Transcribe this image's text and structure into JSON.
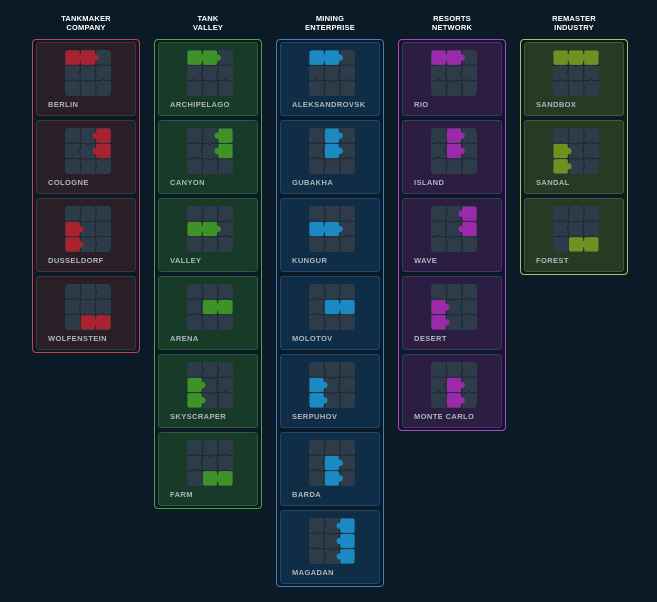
{
  "top_text": "·  ·  ·  ·  ·  ·  ·",
  "groups": [
    {
      "title_line1": "TANKMAKER",
      "title_line2": "COMPANY",
      "color": "#c4414f",
      "card_bg": "#2a1e27",
      "card_border": "#47323c",
      "piece_color": "#a8232f",
      "levels": [
        {
          "name": "BERLIN",
          "piece": 0
        },
        {
          "name": "COLOGNE",
          "piece": 1
        },
        {
          "name": "DUSSELDORF",
          "piece": 2
        },
        {
          "name": "WOLFENSTEIN",
          "piece": 3
        }
      ]
    },
    {
      "title_line1": "TANK",
      "title_line2": "VALLEY",
      "color": "#4fa53a",
      "card_bg": "#173a29",
      "card_border": "#2f5a3a",
      "piece_color": "#3d9327",
      "levels": [
        {
          "name": "ARCHIPELAGO",
          "piece": 0
        },
        {
          "name": "CANYON",
          "piece": 1
        },
        {
          "name": "VALLEY",
          "piece": 4
        },
        {
          "name": "ARENA",
          "piece": 5
        },
        {
          "name": "SKYSCRAPER",
          "piece": 2
        },
        {
          "name": "FARM",
          "piece": 3
        }
      ]
    },
    {
      "title_line1": "MINING",
      "title_line2": "ENTERPRISE",
      "color": "#3d7fc8",
      "card_bg": "#0f2d47",
      "card_border": "#23476a",
      "piece_color": "#1b8ac2",
      "levels": [
        {
          "name": "ALEKSANDROVSK",
          "piece": 0
        },
        {
          "name": "GUBAKHA",
          "piece": 6
        },
        {
          "name": "KUNGUR",
          "piece": 4
        },
        {
          "name": "MOLOTOV",
          "piece": 5
        },
        {
          "name": "SERPUHOV",
          "piece": 2
        },
        {
          "name": "BARDA",
          "piece": 7
        },
        {
          "name": "MAGADAN",
          "piece": 8
        }
      ]
    },
    {
      "title_line1": "RESORTS",
      "title_line2": "NETWORK",
      "color": "#b63ec9",
      "card_bg": "#2c1d43",
      "card_border": "#4a3166",
      "piece_color": "#9b2aa8",
      "levels": [
        {
          "name": "RIO",
          "piece": 0
        },
        {
          "name": "ISLAND",
          "piece": 6
        },
        {
          "name": "WAVE",
          "piece": 1
        },
        {
          "name": "DESERT",
          "piece": 2
        },
        {
          "name": "MONTE CARLO",
          "piece": 7
        }
      ]
    },
    {
      "title_line1": "REMASTER",
      "title_line2": "INDUSTRY",
      "color": "#a3cc46",
      "card_bg": "#263a24",
      "card_border": "#45593a",
      "piece_color": "#6f9120",
      "levels": [
        {
          "name": "SANDBOX",
          "piece": 9
        },
        {
          "name": "SANDAL",
          "piece": 2
        },
        {
          "name": "FOREST",
          "piece": 3
        }
      ]
    }
  ]
}
